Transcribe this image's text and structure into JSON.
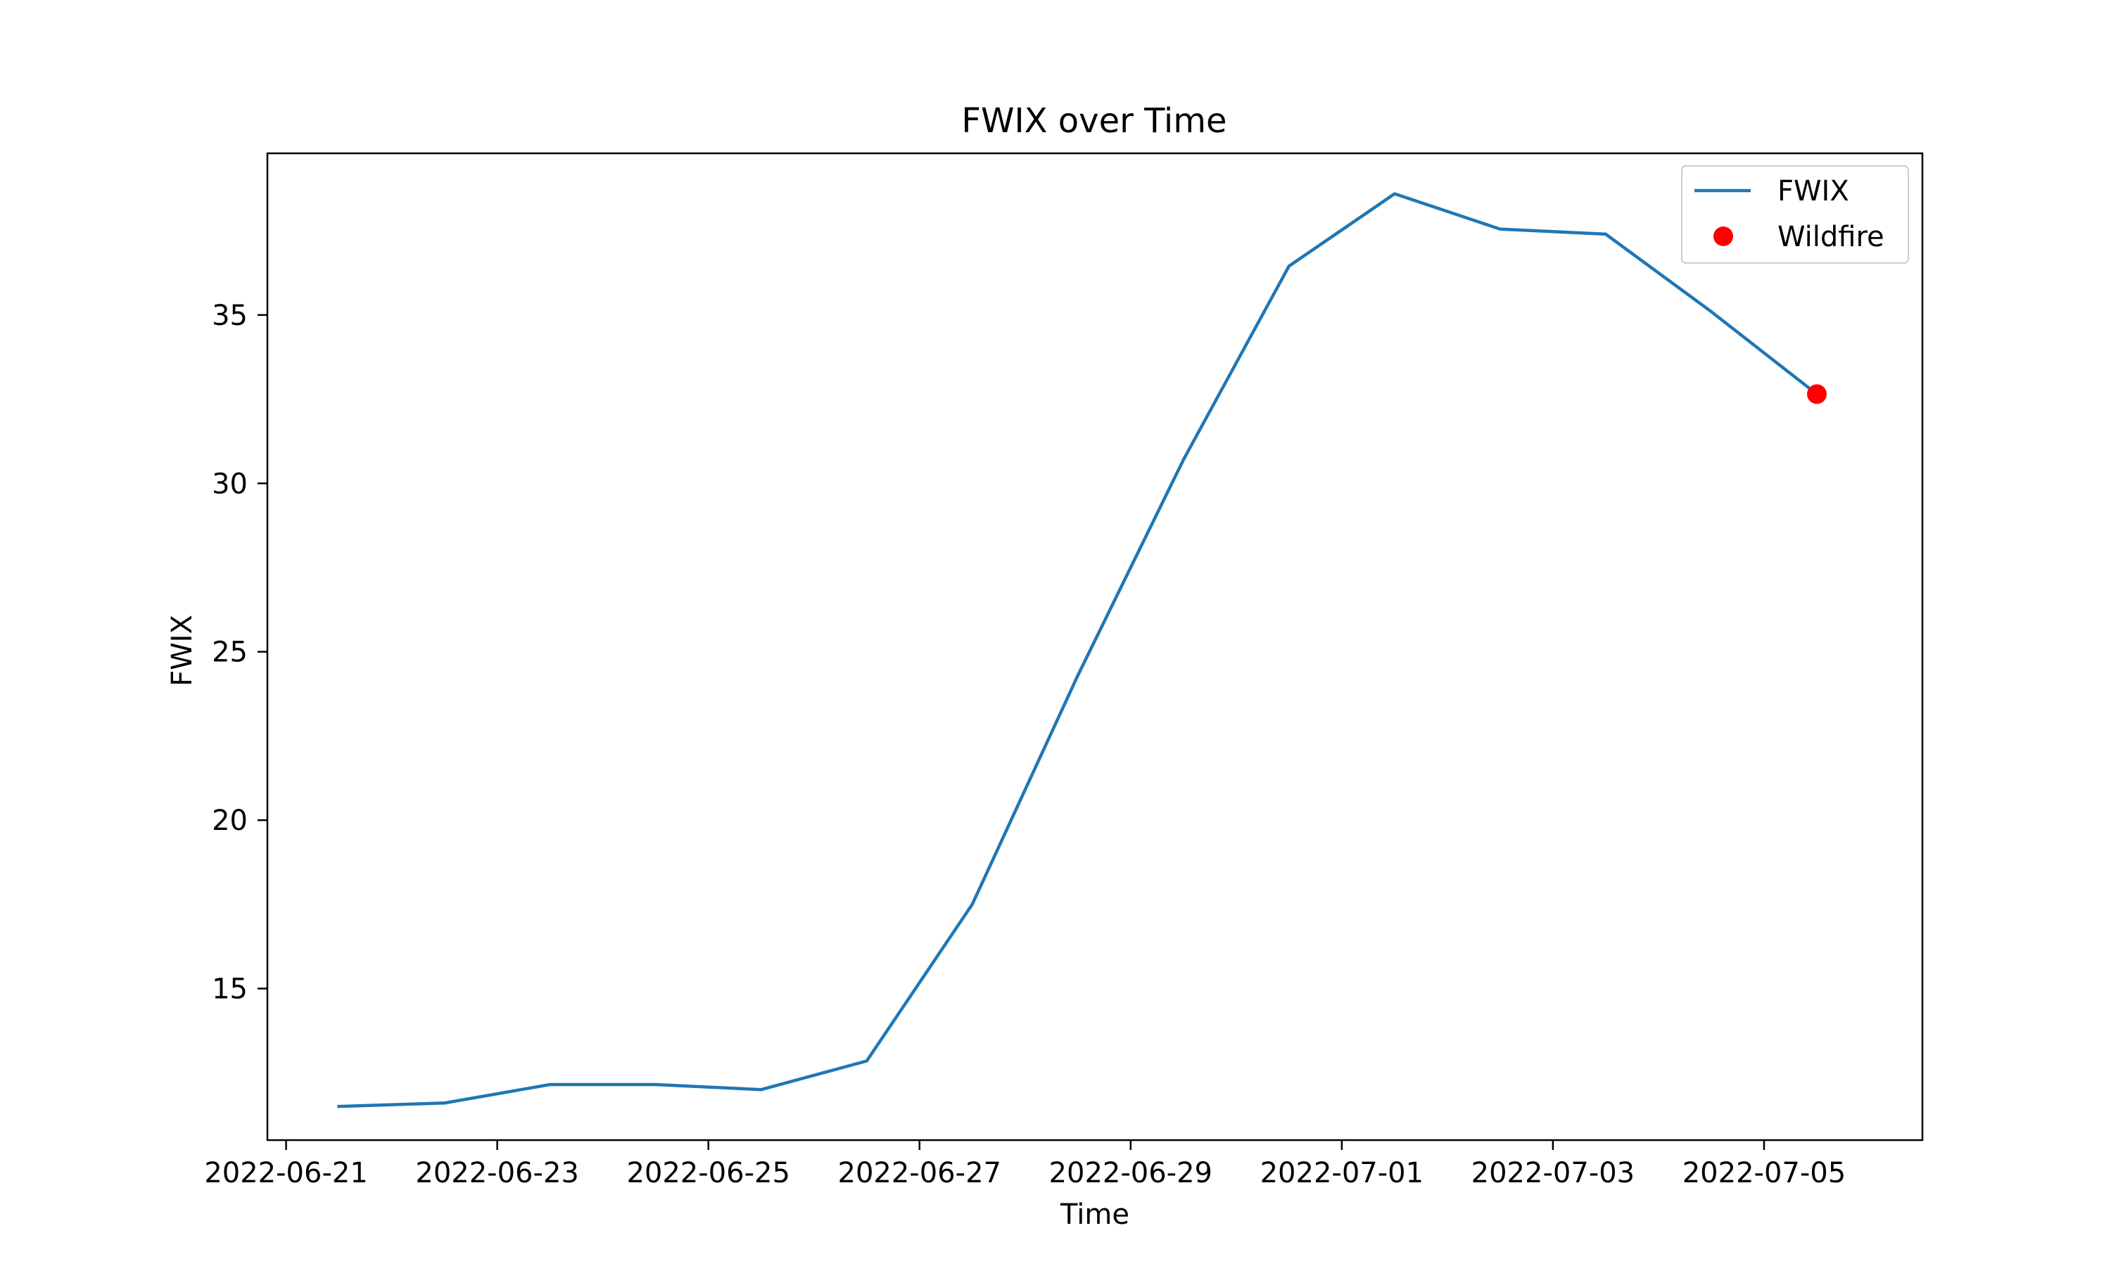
{
  "chart_data": {
    "type": "line",
    "title": "FWIX over Time",
    "xlabel": "Time",
    "ylabel": "FWIX",
    "x_ticks": [
      "2022-06-21",
      "2022-06-23",
      "2022-06-25",
      "2022-06-27",
      "2022-06-29",
      "2022-07-01",
      "2022-07-03",
      "2022-07-05"
    ],
    "y_ticks": [
      15,
      20,
      25,
      30,
      35
    ],
    "xlim": [
      "2022-06-20T19:45",
      "2022-07-06T12:00"
    ],
    "ylim": [
      10.5,
      39.8
    ],
    "grid": false,
    "legend_position": "top-right",
    "series": [
      {
        "name": "FWIX",
        "kind": "line",
        "color": "#1f77b4",
        "x": [
          "2022-06-21T12:00",
          "2022-06-22T12:00",
          "2022-06-23T12:00",
          "2022-06-24T12:00",
          "2022-06-25T12:00",
          "2022-06-26T12:00",
          "2022-06-27T12:00",
          "2022-06-28T12:00",
          "2022-06-29T12:00",
          "2022-06-30T12:00",
          "2022-07-01T12:00",
          "2022-07-02T12:00",
          "2022-07-03T12:00",
          "2022-07-04T12:00",
          "2022-07-05T12:00"
        ],
        "y": [
          11.5,
          11.6,
          12.15,
          12.15,
          12.0,
          12.85,
          17.5,
          24.3,
          30.7,
          36.45,
          38.6,
          37.55,
          37.4,
          35.1,
          32.65
        ]
      },
      {
        "name": "Wildfire",
        "kind": "scatter",
        "color": "#ff0000",
        "x": [
          "2022-07-05T12:00"
        ],
        "y": [
          32.65
        ]
      }
    ]
  }
}
